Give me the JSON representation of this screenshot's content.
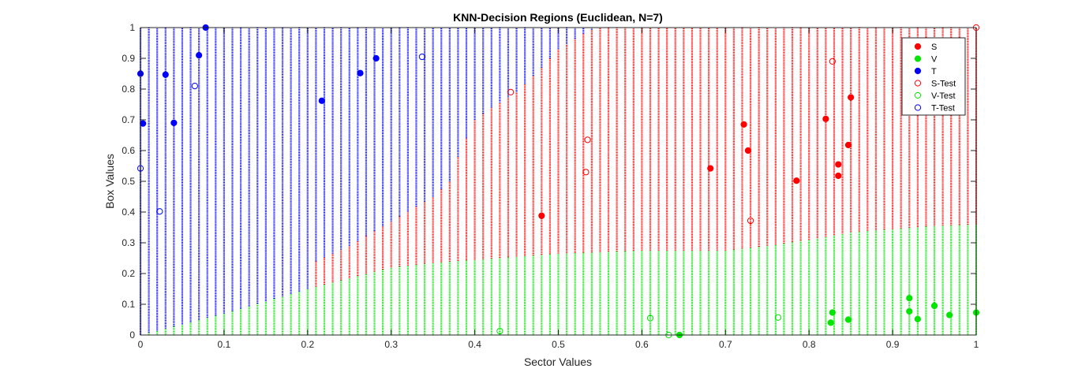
{
  "chart_data": {
    "type": "scatter",
    "title": "KNN-Decision Regions (Euclidean, N=7)",
    "xlabel": "Sector Values",
    "ylabel": "Box Values",
    "xlim": [
      0,
      1
    ],
    "ylim": [
      0,
      1
    ],
    "xticks": [
      "0",
      "0.1",
      "0.2",
      "0.3",
      "0.4",
      "0.5",
      "0.6",
      "0.7",
      "0.8",
      "0.9",
      "1"
    ],
    "yticks": [
      "0",
      "0.1",
      "0.2",
      "0.3",
      "0.4",
      "0.5",
      "0.6",
      "0.7",
      "0.8",
      "0.9",
      "1"
    ],
    "grid": false,
    "legend_position": "top-right",
    "colors": {
      "S": "#ff0000",
      "V": "#00e600",
      "T": "#0000ff"
    },
    "decision_regions": {
      "grid_step_x": 0.01,
      "grid_step_y": 0.005,
      "v_upper_boundary": {
        "x": [
          0,
          0.05,
          0.1,
          0.15,
          0.2,
          0.25,
          0.3,
          0.35,
          0.4,
          0.45,
          0.5,
          0.55,
          0.6,
          0.65,
          0.7,
          0.75,
          0.8,
          0.85,
          0.9,
          0.95,
          1.0
        ],
        "y": [
          0.0,
          0.035,
          0.07,
          0.11,
          0.15,
          0.185,
          0.22,
          0.235,
          0.245,
          0.255,
          0.265,
          0.27,
          0.275,
          0.275,
          0.275,
          0.29,
          0.31,
          0.335,
          0.345,
          0.355,
          0.36
        ]
      },
      "t_lower_boundary": {
        "x": [
          0,
          0.2,
          0.21,
          0.25,
          0.3,
          0.35,
          0.37,
          0.38,
          0.4,
          0.42,
          0.45,
          0.48,
          0.5,
          0.53,
          0.545,
          0.55,
          1.0
        ],
        "y": [
          0.0,
          0.0,
          0.24,
          0.29,
          0.37,
          0.45,
          0.5,
          0.58,
          0.7,
          0.74,
          0.79,
          0.87,
          0.93,
          0.98,
          1.0,
          1.01,
          1.01
        ]
      }
    },
    "series": [
      {
        "name": "S",
        "marker": "filled",
        "points": [
          [
            0.48,
            0.388
          ],
          [
            0.682,
            0.542
          ],
          [
            0.722,
            0.685
          ],
          [
            0.727,
            0.6
          ],
          [
            0.785,
            0.502
          ],
          [
            0.82,
            0.703
          ],
          [
            0.835,
            0.555
          ],
          [
            0.835,
            0.518
          ],
          [
            0.847,
            0.618
          ],
          [
            0.85,
            0.773
          ]
        ]
      },
      {
        "name": "V",
        "marker": "filled",
        "points": [
          [
            0.645,
            0.0
          ],
          [
            0.826,
            0.04
          ],
          [
            0.828,
            0.073
          ],
          [
            0.847,
            0.05
          ],
          [
            0.92,
            0.12
          ],
          [
            0.92,
            0.077
          ],
          [
            0.93,
            0.052
          ],
          [
            0.95,
            0.095
          ],
          [
            0.968,
            0.065
          ],
          [
            1.0,
            0.073
          ]
        ]
      },
      {
        "name": "T",
        "marker": "filled",
        "points": [
          [
            0.0,
            0.85
          ],
          [
            0.003,
            0.688
          ],
          [
            0.03,
            0.847
          ],
          [
            0.04,
            0.69
          ],
          [
            0.07,
            0.91
          ],
          [
            0.078,
            1.0
          ],
          [
            0.217,
            0.762
          ],
          [
            0.263,
            0.852
          ],
          [
            0.282,
            0.9
          ]
        ]
      },
      {
        "name": "S-Test",
        "marker": "open",
        "points": [
          [
            0.443,
            0.79
          ],
          [
            0.533,
            0.53
          ],
          [
            0.535,
            0.635
          ],
          [
            0.73,
            0.372
          ],
          [
            0.828,
            0.89
          ],
          [
            1.0,
            1.0
          ]
        ]
      },
      {
        "name": "V-Test",
        "marker": "open",
        "points": [
          [
            0.43,
            0.013
          ],
          [
            0.61,
            0.055
          ],
          [
            0.632,
            0.0
          ],
          [
            0.763,
            0.057
          ]
        ]
      },
      {
        "name": "T-Test",
        "marker": "open",
        "points": [
          [
            0.0,
            0.542
          ],
          [
            0.023,
            0.402
          ],
          [
            0.065,
            0.81
          ],
          [
            0.337,
            0.905
          ]
        ]
      }
    ]
  }
}
